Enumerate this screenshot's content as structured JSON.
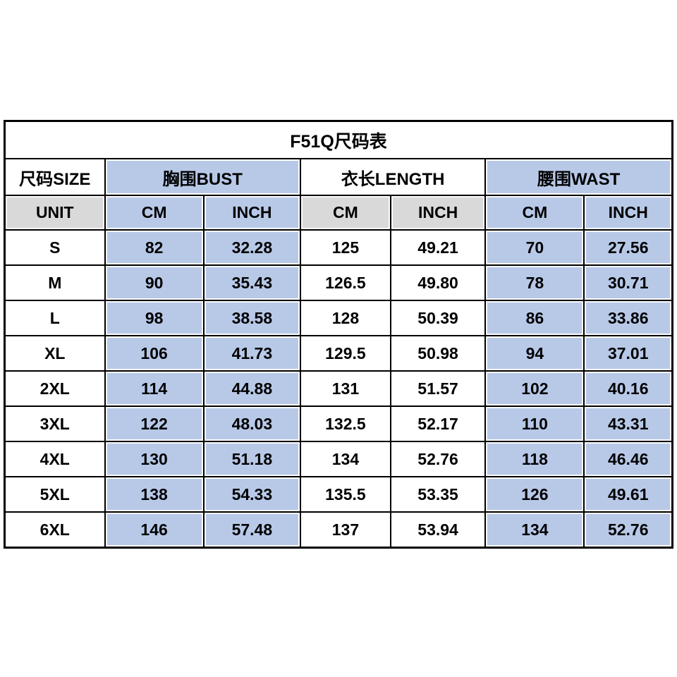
{
  "table": {
    "title": "F51Q尺码表",
    "colors": {
      "cell_blue": "#b8c9e8",
      "cell_gray": "#d9d9d9",
      "border": "#000000",
      "background": "#ffffff",
      "text": "#000000"
    },
    "header": {
      "size": "尺码SIZE",
      "groups": [
        {
          "label": "胸围BUST"
        },
        {
          "label": "衣长LENGTH"
        },
        {
          "label": "腰围WAST"
        }
      ]
    },
    "unit_row": {
      "label": "UNIT",
      "units": [
        "CM",
        "INCH",
        "CM",
        "INCH",
        "CM",
        "INCH"
      ]
    },
    "rows": [
      {
        "size": "S",
        "values": [
          "82",
          "32.28",
          "125",
          "49.21",
          "70",
          "27.56"
        ]
      },
      {
        "size": "M",
        "values": [
          "90",
          "35.43",
          "126.5",
          "49.80",
          "78",
          "30.71"
        ]
      },
      {
        "size": "L",
        "values": [
          "98",
          "38.58",
          "128",
          "50.39",
          "86",
          "33.86"
        ]
      },
      {
        "size": "XL",
        "values": [
          "106",
          "41.73",
          "129.5",
          "50.98",
          "94",
          "37.01"
        ]
      },
      {
        "size": "2XL",
        "values": [
          "114",
          "44.88",
          "131",
          "51.57",
          "102",
          "40.16"
        ]
      },
      {
        "size": "3XL",
        "values": [
          "122",
          "48.03",
          "132.5",
          "52.17",
          "110",
          "43.31"
        ]
      },
      {
        "size": "4XL",
        "values": [
          "130",
          "51.18",
          "134",
          "52.76",
          "118",
          "46.46"
        ]
      },
      {
        "size": "5XL",
        "values": [
          "138",
          "54.33",
          "135.5",
          "53.35",
          "126",
          "49.61"
        ]
      },
      {
        "size": "6XL",
        "values": [
          "146",
          "57.48",
          "137",
          "53.94",
          "134",
          "52.76"
        ]
      }
    ]
  }
}
